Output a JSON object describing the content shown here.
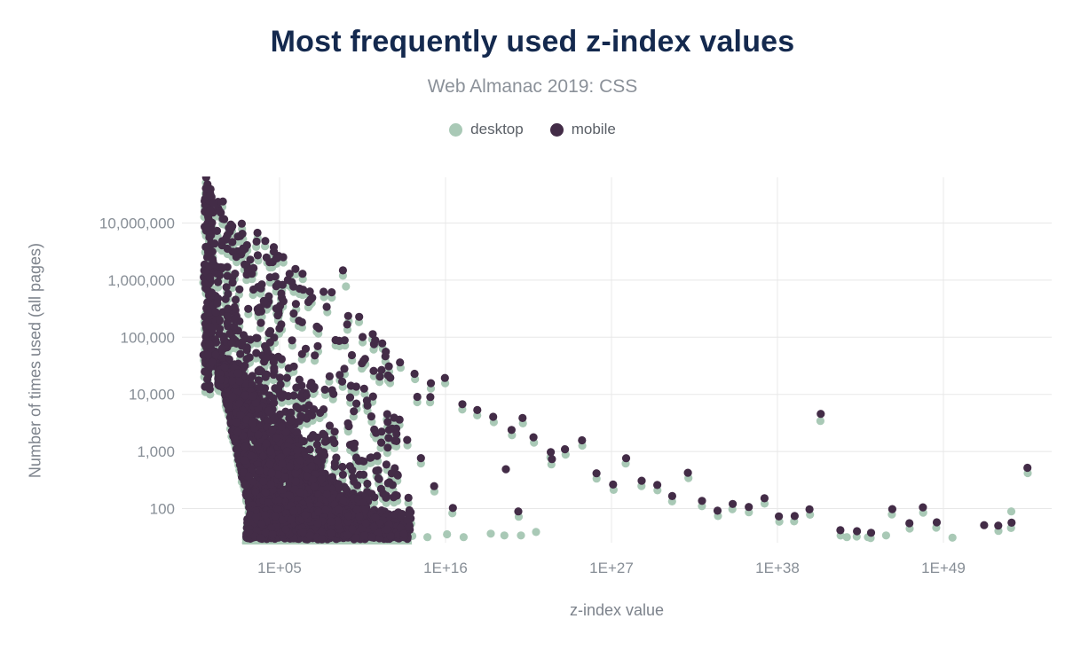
{
  "header": {
    "title": "Most frequently used z-index values",
    "subtitle": "Web Almanac 2019: CSS"
  },
  "legend": [
    {
      "label": "desktop",
      "color": "#a9c9b6"
    },
    {
      "label": "mobile",
      "color": "#432c47"
    }
  ],
  "colors": {
    "title": "#14294e",
    "subtitle": "#8b9199",
    "axis_text": "#878e96",
    "axis_title": "#7d838c",
    "gridline": "#e8e8e8",
    "desktop": "#a9c9b6",
    "mobile": "#432c47",
    "background": "#ffffff"
  },
  "chart_data": {
    "type": "scatter",
    "title": "Most frequently used z-index values",
    "subtitle": "Web Almanac 2019: CSS",
    "xlabel": "z-index value",
    "ylabel": "Number of times used (all pages)",
    "x_scale": "log",
    "y_scale": "log",
    "grid": true,
    "legend_position": "top",
    "x_ticks": [
      "1E+05",
      "1E+16",
      "1E+27",
      "1E+38",
      "1E+49"
    ],
    "x_tick_exponents": [
      5,
      16,
      27,
      38,
      49
    ],
    "y_ticks": [
      "10,000,000",
      "1,000,000",
      "100,000",
      "10,000",
      "1,000",
      "100"
    ],
    "y_tick_values": [
      10000000,
      1000000,
      100000,
      10000,
      1000,
      100
    ],
    "x_range_exponents": [
      0,
      55
    ],
    "y_range": [
      30,
      60000000
    ],
    "series": [
      {
        "name": "desktop",
        "color": "#a9c9b6"
      },
      {
        "name": "mobile",
        "color": "#432c47"
      }
    ],
    "description": "Each point is one distinct z-index value; x = the z-index value (log scale, 1 to ~1E+55), y = number of pages using it (log scale). Mobile (dark) is drawn over desktop (green), desktop counts slightly lower. Dense triangular cloud below ~1E+13 with a hard floor near 30 uses; sparse decaying tail of paired dots out to ~1E+54. Points below are encoded as [x_exponent, log10(count)].",
    "top_string_pairs": [
      [
        0.12,
        7.78
      ],
      [
        0.25,
        7.6
      ],
      [
        0.42,
        7.47
      ],
      [
        0.65,
        7.35
      ],
      [
        0.95,
        7.2
      ],
      [
        1.3,
        7.05
      ],
      [
        1.75,
        6.92
      ],
      [
        2.3,
        6.78
      ],
      [
        2.9,
        6.62
      ],
      [
        3.6,
        6.45
      ],
      [
        0.5,
        7.02
      ],
      [
        0.8,
        6.88
      ],
      [
        1.15,
        6.7
      ],
      [
        1.55,
        6.55
      ],
      [
        2.1,
        6.42
      ],
      [
        2.75,
        6.28
      ],
      [
        4.3,
        6.33
      ],
      [
        4.7,
        6.08
      ],
      [
        5.3,
        6.42
      ],
      [
        5.75,
        5.98
      ],
      [
        6.4,
        5.85
      ],
      [
        7.2,
        5.7
      ],
      [
        8.4,
        5.78
      ],
      [
        9.18,
        6.17
      ],
      [
        10.2,
        5.35
      ],
      [
        11.1,
        5.05
      ],
      [
        12.1,
        4.75
      ]
    ],
    "tail_pairs": [
      [
        13.0,
        4.54
      ],
      [
        14.0,
        4.35
      ],
      [
        14.1,
        3.96
      ],
      [
        15.0,
        4.18
      ],
      [
        15.0,
        3.96
      ],
      [
        12.4,
        4.3
      ],
      [
        12.6,
        3.6
      ],
      [
        13.4,
        3.2
      ],
      [
        12.9,
        2.6
      ],
      [
        13.6,
        2.2
      ],
      [
        14.4,
        2.9
      ],
      [
        15.3,
        2.4
      ],
      [
        16.0,
        4.29
      ],
      [
        16.5,
        2.0
      ],
      [
        17.06,
        3.84
      ],
      [
        18.06,
        3.73
      ],
      [
        19.12,
        3.59
      ],
      [
        20.3,
        3.36
      ],
      [
        21.06,
        3.58
      ],
      [
        20.9,
        1.93
      ],
      [
        21.76,
        3.23
      ],
      [
        23.0,
        2.97
      ],
      [
        23.0,
        2.88
      ],
      [
        23.94,
        3.05
      ],
      [
        25.0,
        3.2
      ],
      [
        26.0,
        2.63
      ],
      [
        27.06,
        2.44
      ],
      [
        27.94,
        2.88
      ],
      [
        29.06,
        2.49
      ],
      [
        30.06,
        2.4
      ],
      [
        31.0,
        2.21
      ],
      [
        32.06,
        2.61
      ],
      [
        33.0,
        2.12
      ],
      [
        34.1,
        1.96
      ],
      [
        35.1,
        2.07
      ],
      [
        36.1,
        2.01
      ],
      [
        37.1,
        2.19
      ],
      [
        38.1,
        1.87
      ],
      [
        39.1,
        1.88
      ],
      [
        40.2,
        1.98
      ],
      [
        40.8,
        3.64
      ],
      [
        42.2,
        1.62
      ],
      [
        43.2,
        1.59
      ],
      [
        44.2,
        1.59
      ],
      [
        45.6,
        2.01
      ],
      [
        46.7,
        1.73
      ],
      [
        47.7,
        2.02
      ],
      [
        48.6,
        1.77
      ],
      [
        52.6,
        1.71
      ],
      [
        53.5,
        1.77
      ],
      [
        54.6,
        2.72
      ]
    ],
    "mobile_singles": [
      [
        20.0,
        2.69
      ],
      [
        51.7,
        1.71
      ]
    ],
    "desktop_singles": [
      [
        13.8,
        1.52
      ],
      [
        14.8,
        1.5
      ],
      [
        16.1,
        1.55
      ],
      [
        17.2,
        1.5
      ],
      [
        19.0,
        1.56
      ],
      [
        19.9,
        1.53
      ],
      [
        21.0,
        1.53
      ],
      [
        22.0,
        1.59
      ],
      [
        45.2,
        1.53
      ],
      [
        49.6,
        1.49
      ],
      [
        9.4,
        5.89
      ],
      [
        53.5,
        1.95
      ],
      [
        42.6,
        1.5
      ],
      [
        44.0,
        1.5
      ]
    ],
    "dense_cloud": {
      "seed": 20190731,
      "wall": {
        "n": 110,
        "x": [
          0.02,
          0.45
        ],
        "e": [
          4.1,
          7.75
        ]
      },
      "upper": {
        "n": 560,
        "x_start": 0.35,
        "x_span": 12.6,
        "x_pow": 1.65,
        "snap": 0.17,
        "snap_p": 0.7,
        "e_pow": 2.2,
        "top": [
          7.72,
          -0.235
        ]
      },
      "core": {
        "n": 2100,
        "x_start": 1.0,
        "x_span": 9.8,
        "x_pow": 1.4,
        "snap": 0.13,
        "snap_p": 0.55,
        "snap_from": 3.4,
        "top": [
          5.15,
          -0.33,
          2.2,
          4.5
        ],
        "low": {
          "flat_until": 1.3,
          "flat": 4.15,
          "slope": -1.3,
          "min": 1.55
        }
      },
      "floor": {
        "n": 680,
        "x_start": 2.85,
        "x_span": 10.8,
        "x_pow": 1.1,
        "e": [
          1.48,
          1.98
        ],
        "e_pow": 1.6,
        "snap": 0.13,
        "snap_p": 0.5,
        "snap_from": 6
      }
    }
  }
}
